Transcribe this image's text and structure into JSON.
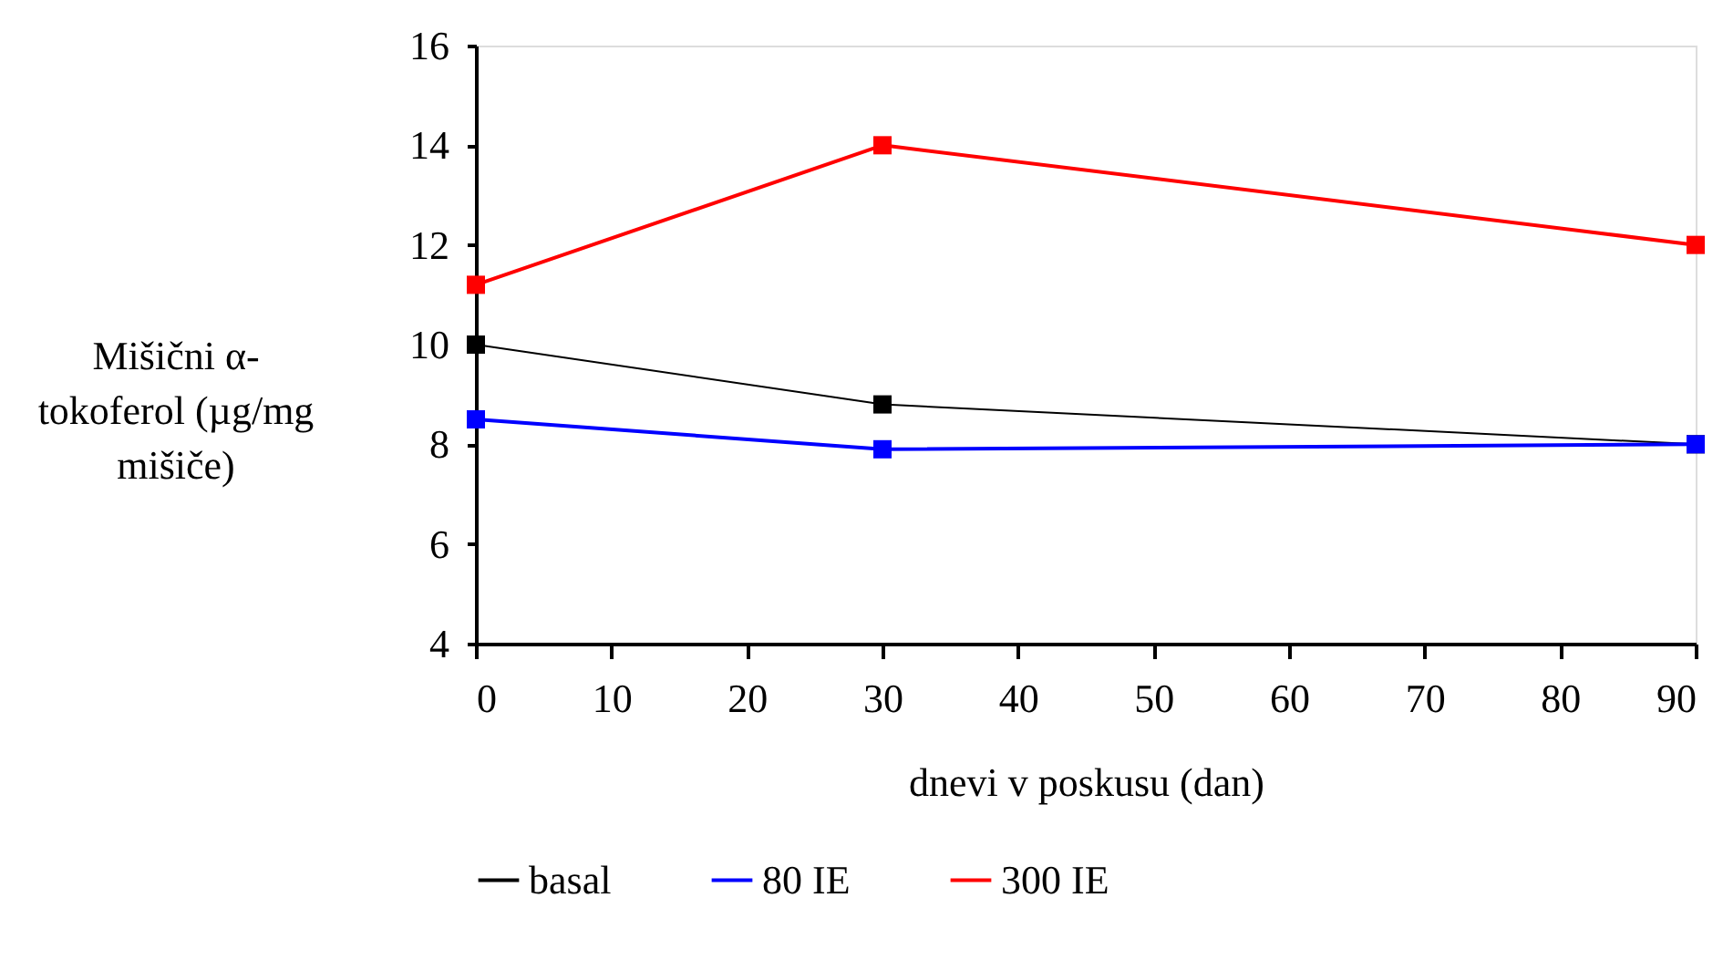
{
  "chart_data": {
    "type": "line",
    "xlabel": "dnevi v poskusu (dan)",
    "ylabel": "Mišični α-tokoferol (µg/mg mišiče)",
    "x": [
      0,
      30,
      90
    ],
    "series": [
      {
        "name": "basal",
        "color": "#000000",
        "values": [
          10,
          8.8,
          8
        ]
      },
      {
        "name": "80 IE",
        "color": "#0000ff",
        "values": [
          8.5,
          7.9,
          8
        ]
      },
      {
        "name": "300 IE",
        "color": "#ff0000",
        "values": [
          11.2,
          14,
          12
        ]
      }
    ],
    "xlim": [
      0,
      90
    ],
    "xticks": [
      0,
      10,
      20,
      30,
      40,
      50,
      60,
      70,
      80,
      90
    ],
    "ylim": [
      4,
      16
    ],
    "yticks": [
      4,
      6,
      8,
      10,
      12,
      14,
      16
    ],
    "grid": false,
    "legend": "bottom",
    "marker": "square",
    "line_style": "solid"
  }
}
